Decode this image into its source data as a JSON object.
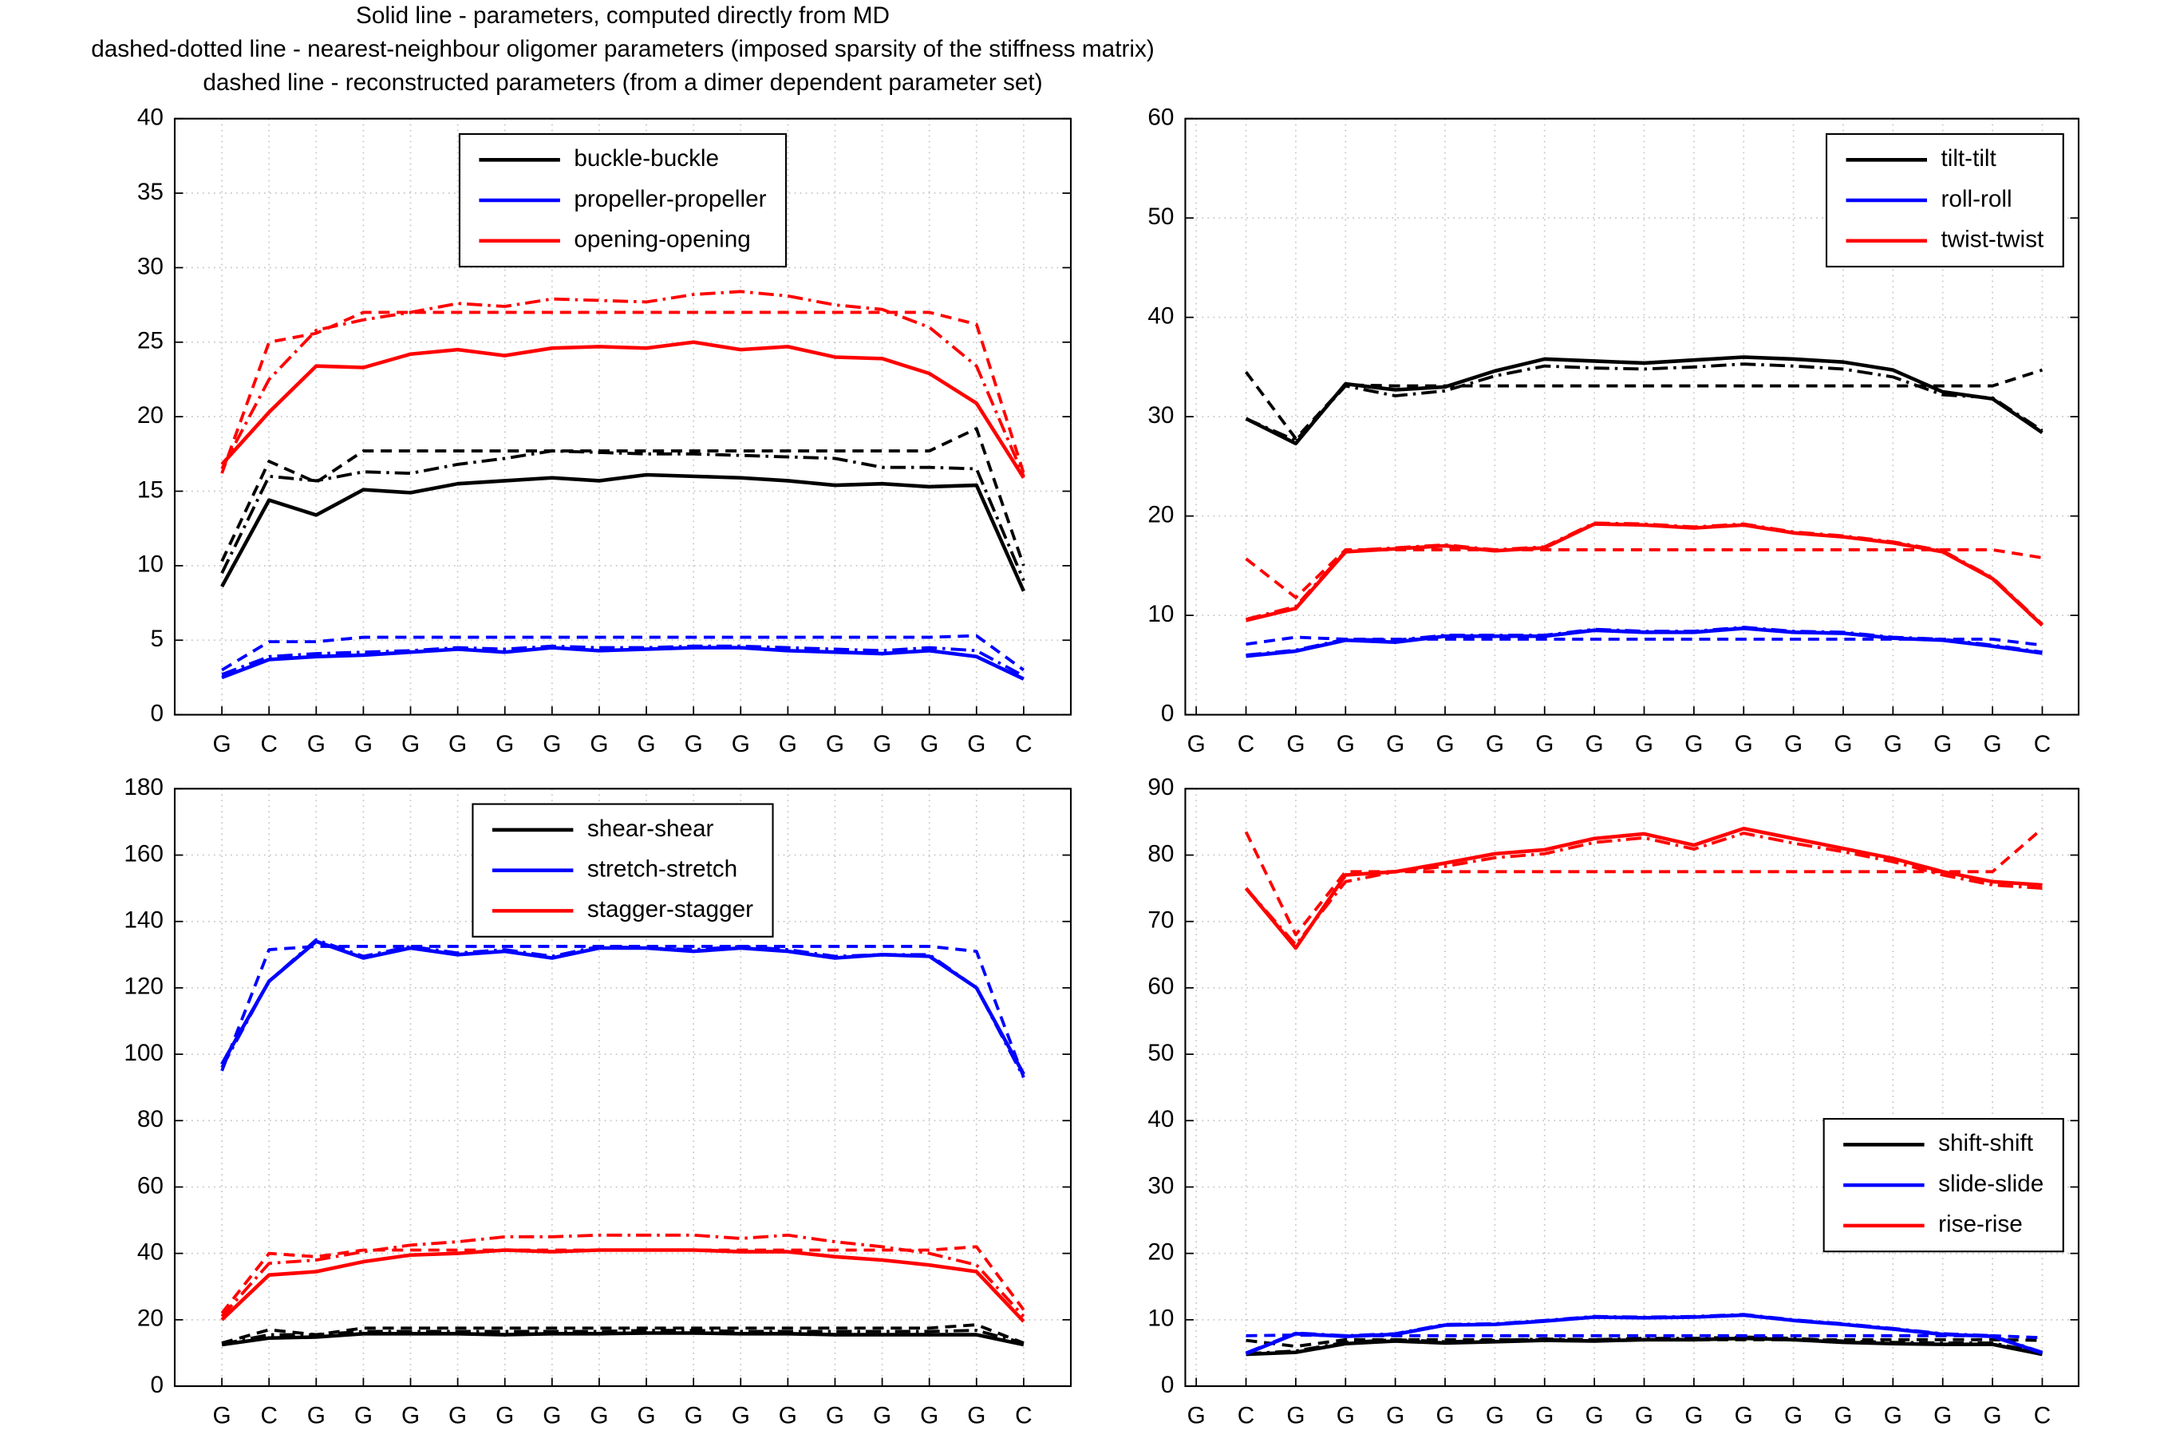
{
  "title": [
    "Solid line - parameters, computed directly from MD",
    "dashed-dotted line - nearest-neighbour oligomer parameters (imposed sparsity of the stiffness matrix)",
    "dashed line - reconstructed parameters (from a dimer dependent parameter set)"
  ],
  "chart_data": [
    {
      "type": "line",
      "grid": true,
      "legend": "upper center",
      "categories": [
        "G",
        "C",
        "G",
        "G",
        "G",
        "G",
        "G",
        "G",
        "G",
        "G",
        "G",
        "G",
        "G",
        "G",
        "G",
        "G",
        "G",
        "C"
      ],
      "xlim": [
        0,
        19
      ],
      "ylim": [
        0,
        40
      ],
      "yticks": [
        0,
        5,
        10,
        15,
        20,
        25,
        30,
        35,
        40
      ],
      "series": [
        {
          "name": "buckle-buckle",
          "color": "#000000",
          "style": "solid",
          "values": [
            8.6,
            14.4,
            13.4,
            15.1,
            14.9,
            15.5,
            15.7,
            15.9,
            15.7,
            16.1,
            16.0,
            15.9,
            15.7,
            15.4,
            15.5,
            15.3,
            15.4,
            8.3
          ]
        },
        {
          "color": "#000000",
          "style": "dashdot",
          "values": [
            9.5,
            16.0,
            15.7,
            16.3,
            16.2,
            16.8,
            17.2,
            17.7,
            17.6,
            17.5,
            17.5,
            17.4,
            17.3,
            17.2,
            16.6,
            16.6,
            16.5,
            9.0
          ]
        },
        {
          "color": "#000000",
          "style": "dashed",
          "values": [
            10.3,
            17.0,
            15.6,
            17.7,
            17.7,
            17.7,
            17.7,
            17.7,
            17.7,
            17.7,
            17.7,
            17.7,
            17.7,
            17.7,
            17.7,
            17.7,
            19.2,
            10.0
          ]
        },
        {
          "name": "propeller-propeller",
          "color": "#0000ff",
          "style": "solid",
          "values": [
            2.5,
            3.7,
            3.9,
            4.0,
            4.2,
            4.4,
            4.2,
            4.5,
            4.3,
            4.4,
            4.5,
            4.5,
            4.3,
            4.2,
            4.1,
            4.3,
            3.9,
            2.4
          ]
        },
        {
          "color": "#0000ff",
          "style": "dashdot",
          "values": [
            2.7,
            3.9,
            4.1,
            4.2,
            4.3,
            4.5,
            4.4,
            4.6,
            4.5,
            4.5,
            4.6,
            4.6,
            4.5,
            4.4,
            4.3,
            4.5,
            4.3,
            2.6
          ]
        },
        {
          "color": "#0000ff",
          "style": "dashed",
          "values": [
            3.0,
            4.9,
            4.9,
            5.2,
            5.2,
            5.2,
            5.2,
            5.2,
            5.2,
            5.2,
            5.2,
            5.2,
            5.2,
            5.2,
            5.2,
            5.2,
            5.3,
            3.0
          ]
        },
        {
          "name": "opening-opening",
          "color": "#ff0000",
          "style": "solid",
          "values": [
            16.8,
            20.3,
            23.4,
            23.3,
            24.2,
            24.5,
            24.1,
            24.6,
            24.7,
            24.6,
            25.0,
            24.5,
            24.7,
            24.0,
            23.9,
            22.9,
            20.9,
            15.9
          ]
        },
        {
          "color": "#ff0000",
          "style": "dashdot",
          "values": [
            16.5,
            22.5,
            25.8,
            26.5,
            27.0,
            27.6,
            27.4,
            27.9,
            27.8,
            27.7,
            28.2,
            28.4,
            28.1,
            27.5,
            27.2,
            26.0,
            23.4,
            16.0
          ]
        },
        {
          "color": "#ff0000",
          "style": "dashed",
          "values": [
            16.2,
            25.0,
            25.6,
            27.0,
            27.0,
            27.0,
            27.0,
            27.0,
            27.0,
            27.0,
            27.0,
            27.0,
            27.0,
            27.0,
            27.0,
            27.0,
            26.2,
            16.2
          ]
        }
      ]
    },
    {
      "type": "line",
      "grid": true,
      "legend": "upper right",
      "categories": [
        "G",
        "C",
        "G",
        "G",
        "G",
        "G",
        "G",
        "G",
        "G",
        "G",
        "G",
        "G",
        "G",
        "G",
        "G",
        "G",
        "G",
        "C"
      ],
      "xlim": [
        0.78,
        18.73
      ],
      "ylim": [
        0,
        60
      ],
      "yticks": [
        0,
        10,
        20,
        30,
        40,
        50,
        60
      ],
      "series": [
        {
          "name": "tilt-tilt",
          "color": "#000000",
          "style": "solid",
          "values": [
            null,
            29.8,
            27.3,
            33.3,
            32.7,
            33.0,
            34.6,
            35.8,
            35.6,
            35.4,
            35.7,
            36.0,
            35.8,
            35.5,
            34.7,
            32.5,
            31.8,
            28.4
          ]
        },
        {
          "color": "#000000",
          "style": "dashdot",
          "values": [
            null,
            29.8,
            27.6,
            33.1,
            32.1,
            32.6,
            34.1,
            35.1,
            34.9,
            34.8,
            35.0,
            35.3,
            35.1,
            34.8,
            34.0,
            32.2,
            31.9,
            28.6
          ]
        },
        {
          "color": "#000000",
          "style": "dashed",
          "values": [
            null,
            34.5,
            27.8,
            33.2,
            33.1,
            33.1,
            33.1,
            33.1,
            33.1,
            33.1,
            33.1,
            33.1,
            33.1,
            33.1,
            33.1,
            33.1,
            33.1,
            34.7
          ]
        },
        {
          "name": "roll-roll",
          "color": "#0000ff",
          "style": "solid",
          "values": [
            null,
            5.9,
            6.4,
            7.5,
            7.3,
            7.9,
            7.9,
            7.9,
            8.5,
            8.3,
            8.3,
            8.7,
            8.3,
            8.2,
            7.7,
            7.5,
            6.9,
            6.2
          ]
        },
        {
          "color": "#0000ff",
          "style": "dashdot",
          "values": [
            null,
            6.0,
            6.5,
            7.6,
            7.5,
            8.0,
            8.0,
            8.0,
            8.6,
            8.4,
            8.4,
            8.8,
            8.4,
            8.3,
            7.8,
            7.6,
            7.0,
            6.3
          ]
        },
        {
          "color": "#0000ff",
          "style": "dashed",
          "values": [
            null,
            7.1,
            7.8,
            7.6,
            7.6,
            7.6,
            7.6,
            7.6,
            7.6,
            7.6,
            7.6,
            7.6,
            7.6,
            7.6,
            7.6,
            7.6,
            7.6,
            7.0
          ]
        },
        {
          "name": "twist-twist",
          "color": "#ff0000",
          "style": "solid",
          "values": [
            null,
            9.5,
            10.7,
            16.4,
            16.7,
            17.0,
            16.5,
            16.8,
            19.2,
            19.1,
            18.8,
            19.1,
            18.3,
            17.9,
            17.3,
            16.4,
            13.7,
            9.0
          ]
        },
        {
          "color": "#ff0000",
          "style": "dashdot",
          "values": [
            null,
            9.6,
            10.9,
            16.5,
            16.8,
            17.1,
            16.6,
            16.9,
            19.3,
            19.2,
            18.9,
            19.2,
            18.4,
            18.0,
            17.4,
            16.5,
            13.8,
            9.1
          ]
        },
        {
          "color": "#ff0000",
          "style": "dashed",
          "values": [
            null,
            15.7,
            11.8,
            16.6,
            16.6,
            16.6,
            16.6,
            16.6,
            16.6,
            16.6,
            16.6,
            16.6,
            16.6,
            16.6,
            16.6,
            16.6,
            16.6,
            15.8
          ]
        }
      ]
    },
    {
      "type": "line",
      "grid": true,
      "legend": "upper center",
      "categories": [
        "G",
        "C",
        "G",
        "G",
        "G",
        "G",
        "G",
        "G",
        "G",
        "G",
        "G",
        "G",
        "G",
        "G",
        "G",
        "G",
        "G",
        "C"
      ],
      "xlim": [
        0,
        19
      ],
      "ylim": [
        0,
        180
      ],
      "yticks": [
        0,
        20,
        40,
        60,
        80,
        100,
        120,
        140,
        160,
        180
      ],
      "series": [
        {
          "name": "shear-shear",
          "color": "#000000",
          "style": "solid",
          "values": [
            12.5,
            14.5,
            14.8,
            15.8,
            15.8,
            15.8,
            15.5,
            15.8,
            15.8,
            16.0,
            16.0,
            15.8,
            15.8,
            15.5,
            15.5,
            15.5,
            15.5,
            12.5
          ]
        },
        {
          "color": "#000000",
          "style": "dashdot",
          "values": [
            12.7,
            15.5,
            15.5,
            16.5,
            16.5,
            16.5,
            16.5,
            16.5,
            16.5,
            16.8,
            16.8,
            16.5,
            16.5,
            16.5,
            16.5,
            16.5,
            16.8,
            13.0
          ]
        },
        {
          "color": "#000000",
          "style": "dashed",
          "values": [
            13.0,
            17.0,
            15.5,
            17.5,
            17.5,
            17.5,
            17.5,
            17.5,
            17.5,
            17.5,
            17.5,
            17.5,
            17.5,
            17.5,
            17.5,
            17.5,
            18.5,
            13.0
          ]
        },
        {
          "name": "stretch-stretch",
          "color": "#0000ff",
          "style": "solid",
          "values": [
            97,
            122,
            134,
            129,
            132,
            130,
            131,
            129,
            132,
            132,
            131,
            132,
            131,
            129,
            130,
            129.5,
            120,
            94
          ]
        },
        {
          "color": "#0000ff",
          "style": "dashdot",
          "values": [
            96,
            122,
            134.5,
            129.5,
            132.5,
            130.5,
            131.5,
            129.5,
            132.5,
            132,
            131.5,
            132.5,
            131.5,
            129.5,
            130,
            130,
            120,
            93
          ]
        },
        {
          "color": "#0000ff",
          "style": "dashed",
          "values": [
            95,
            131.5,
            132.5,
            132.5,
            132.5,
            132.5,
            132.5,
            132.5,
            132.5,
            132.5,
            132.5,
            132.5,
            132.5,
            132.5,
            132.5,
            132.5,
            131,
            93
          ]
        },
        {
          "name": "stagger-stagger",
          "color": "#ff0000",
          "style": "solid",
          "values": [
            20,
            33.5,
            34.5,
            37.5,
            39.5,
            40,
            41,
            40.5,
            41,
            41,
            41,
            40.5,
            40.5,
            39,
            38,
            36.5,
            34.5,
            19.5
          ]
        },
        {
          "color": "#ff0000",
          "style": "dashdot",
          "values": [
            21,
            37,
            38,
            40.5,
            42.5,
            43.5,
            45,
            45,
            45.5,
            45.5,
            45.5,
            44.5,
            45.5,
            43.5,
            42,
            40,
            36.5,
            21
          ]
        },
        {
          "color": "#ff0000",
          "style": "dashed",
          "values": [
            22,
            40,
            39,
            41,
            41,
            41,
            41,
            41,
            41,
            41,
            41,
            41,
            41,
            41,
            41,
            41,
            42,
            23
          ]
        }
      ]
    },
    {
      "type": "line",
      "grid": true,
      "legend": "center right",
      "categories": [
        "G",
        "C",
        "G",
        "G",
        "G",
        "G",
        "G",
        "G",
        "G",
        "G",
        "G",
        "G",
        "G",
        "G",
        "G",
        "G",
        "G",
        "C"
      ],
      "xlim": [
        0.78,
        18.73
      ],
      "ylim": [
        0,
        90
      ],
      "yticks": [
        0,
        10,
        20,
        30,
        40,
        50,
        60,
        70,
        80,
        90
      ],
      "series": [
        {
          "name": "shift-shift",
          "color": "#000000",
          "style": "solid",
          "values": [
            null,
            4.8,
            5.1,
            6.4,
            6.8,
            6.5,
            6.7,
            6.9,
            6.8,
            7.0,
            7.0,
            7.2,
            7.0,
            6.6,
            6.4,
            6.3,
            6.3,
            4.8
          ]
        },
        {
          "color": "#000000",
          "style": "dashdot",
          "values": [
            null,
            4.9,
            5.3,
            6.6,
            7.0,
            6.7,
            6.9,
            7.1,
            7.0,
            7.2,
            7.2,
            7.4,
            7.2,
            6.8,
            6.6,
            6.5,
            6.5,
            5.0
          ]
        },
        {
          "color": "#000000",
          "style": "dashed",
          "values": [
            null,
            6.9,
            6.0,
            7.0,
            7.0,
            7.0,
            7.0,
            7.0,
            7.0,
            7.0,
            7.0,
            7.0,
            7.0,
            7.0,
            7.0,
            7.0,
            7.0,
            6.9
          ]
        },
        {
          "name": "slide-slide",
          "color": "#0000ff",
          "style": "solid",
          "values": [
            null,
            4.9,
            7.9,
            7.5,
            7.8,
            9.2,
            9.3,
            9.8,
            10.4,
            10.3,
            10.4,
            10.7,
            9.9,
            9.3,
            8.6,
            7.8,
            7.5,
            5.0
          ]
        },
        {
          "color": "#0000ff",
          "style": "dashdot",
          "values": [
            null,
            5.0,
            8.0,
            7.6,
            7.9,
            9.3,
            9.4,
            9.9,
            10.5,
            10.4,
            10.5,
            10.8,
            10.0,
            9.4,
            8.7,
            7.9,
            7.6,
            5.1
          ]
        },
        {
          "color": "#0000ff",
          "style": "dashed",
          "values": [
            null,
            7.6,
            7.7,
            7.6,
            7.6,
            7.6,
            7.6,
            7.6,
            7.6,
            7.6,
            7.6,
            7.6,
            7.6,
            7.6,
            7.6,
            7.6,
            7.6,
            7.3
          ]
        },
        {
          "name": "rise-rise",
          "color": "#ff0000",
          "style": "solid",
          "values": [
            null,
            75,
            66,
            77,
            77.5,
            78.8,
            80.2,
            80.8,
            82.5,
            83.2,
            81.5,
            84,
            82.5,
            81,
            79.5,
            77.5,
            76,
            75.5
          ]
        },
        {
          "color": "#ff0000",
          "style": "dashdot",
          "values": [
            null,
            75,
            66.5,
            76,
            77.5,
            78.3,
            79.6,
            80.2,
            81.9,
            82.6,
            80.9,
            83.3,
            81.8,
            80.5,
            79,
            77,
            75.5,
            75
          ]
        },
        {
          "color": "#ff0000",
          "style": "dashed",
          "values": [
            null,
            83.5,
            68,
            77.5,
            77.5,
            77.5,
            77.5,
            77.5,
            77.5,
            77.5,
            77.5,
            77.5,
            77.5,
            77.5,
            77.5,
            77.5,
            77.5,
            84
          ]
        }
      ]
    }
  ]
}
